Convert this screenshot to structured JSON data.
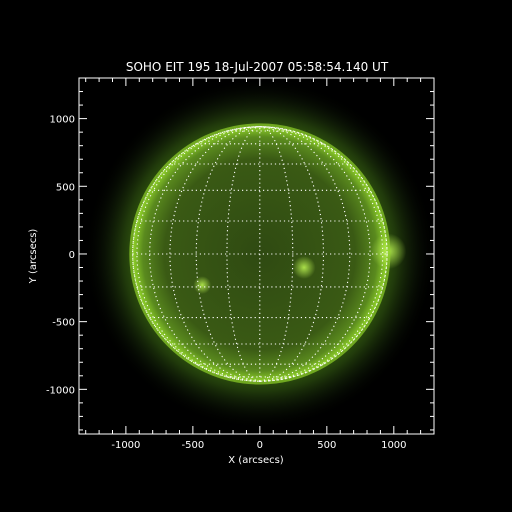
{
  "title": "SOHO EIT 195 18-Jul-2007 05:58:54.140 UT",
  "axes": {
    "xlabel": "X (arcsecs)",
    "ylabel": "Y (arcsecs)",
    "xlim": [
      -1350,
      1300
    ],
    "ylim": [
      -1330,
      1300
    ],
    "xticks": [
      -1000,
      -500,
      0,
      500,
      1000
    ],
    "yticks": [
      -1000,
      -500,
      0,
      500,
      1000
    ],
    "xtick_labels": [
      "-1000",
      "-500",
      "0",
      "500",
      "1000"
    ],
    "ytick_labels": [
      "-1000",
      "-500",
      "0",
      "500",
      "1000"
    ]
  },
  "image": {
    "instrument": "EIT",
    "wavelength": "195",
    "solar_radius_arcsec": 950,
    "grid_spacing_deg": 15,
    "colors": {
      "limb": "#8fd02a",
      "disk": "#3c5a14",
      "corona": "#2c4a0c",
      "active_region": "#a8e040",
      "grid": "#ffffff"
    }
  }
}
